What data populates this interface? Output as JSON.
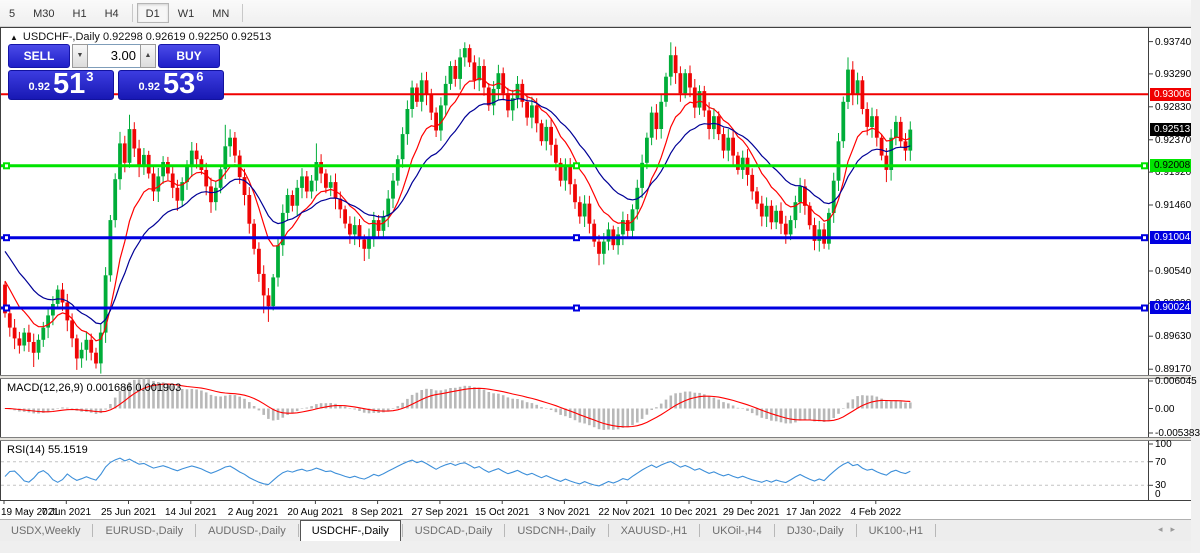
{
  "toolbar": {
    "items": [
      {
        "label": "5",
        "active": false
      },
      {
        "label": "M30",
        "active": false
      },
      {
        "label": "H1",
        "active": false
      },
      {
        "label": "H4",
        "active": false,
        "sep_after": true
      },
      {
        "label": "D1",
        "active": true
      },
      {
        "label": "W1",
        "active": false
      },
      {
        "label": "MN",
        "active": false,
        "sep_after": true
      }
    ]
  },
  "header": {
    "collapse_icon": "▲",
    "title_line": "USDCHF-,Daily  0.92298 0.92619 0.92250 0.92513"
  },
  "trade_panel": {
    "sell_label": "SELL",
    "buy_label": "BUY",
    "volume": "3.00",
    "spinner_down_icon": "▼",
    "spinner_up_icon": "▲",
    "sell_price_small": "0.92",
    "sell_price_big": "51",
    "sell_price_sup": "3",
    "buy_price_small": "0.92",
    "buy_price_big": "53",
    "buy_price_sup": "6"
  },
  "price_axis": {
    "labels": [
      {
        "text": "0.93740",
        "price": 0.9374
      },
      {
        "text": "0.93290",
        "price": 0.9329
      },
      {
        "text": "0.92830",
        "price": 0.9283
      },
      {
        "text": "0.92370",
        "price": 0.9237
      },
      {
        "text": "0.91920",
        "price": 0.9192
      },
      {
        "text": "0.91460",
        "price": 0.9146
      },
      {
        "text": "0.90540",
        "price": 0.9054
      },
      {
        "text": "0.90090",
        "price": 0.9009
      },
      {
        "text": "0.89630",
        "price": 0.8963
      },
      {
        "text": "0.89170",
        "price": 0.8917
      }
    ],
    "badges": [
      {
        "text": "0.93006",
        "price": 0.93006,
        "bg": "#f00000",
        "fg": "#ffffff",
        "name": "resistance-line-price"
      },
      {
        "text": "0.92513",
        "price": 0.92513,
        "bg": "#000000",
        "fg": "#ffffff",
        "name": "current-price"
      },
      {
        "text": "0.92008",
        "price": 0.92008,
        "bg": "#00e400",
        "fg": "#000000",
        "name": "support-line-price"
      },
      {
        "text": "0.91004",
        "price": 0.91004,
        "bg": "#0000e0",
        "fg": "#ffffff",
        "name": "support-line-price"
      },
      {
        "text": "0.90024",
        "price": 0.90024,
        "bg": "#0000e0",
        "fg": "#ffffff",
        "name": "support-line-price"
      }
    ]
  },
  "chart_data": {
    "type": "candlestick",
    "symbol": "USDCHF-",
    "timeframe": "Daily",
    "ohlc_display": {
      "open": "0.92298",
      "high": "0.92619",
      "low": "0.92250",
      "close": "0.92513"
    },
    "y_axis": {
      "min": 0.89075,
      "max": 0.9393
    },
    "x_axis": {
      "tick_dates": [
        "19 May 2021",
        "7 Jun 2021",
        "25 Jun 2021",
        "14 Jul 2021",
        "2 Aug 2021",
        "20 Aug 2021",
        "8 Sep 2021",
        "27 Sep 2021",
        "15 Oct 2021",
        "3 Nov 2021",
        "22 Nov 2021",
        "10 Dec 2021",
        "29 Dec 2021",
        "17 Jan 2022",
        "4 Feb 2022"
      ],
      "candles_per_tick": 13
    },
    "first_open": 0.9035,
    "closes": [
      0.8995,
      0.8975,
      0.896,
      0.895,
      0.8968,
      0.8955,
      0.894,
      0.8958,
      0.8975,
      0.8992,
      0.9008,
      0.9028,
      0.901,
      0.8985,
      0.896,
      0.8932,
      0.8944,
      0.8958,
      0.894,
      0.8925,
      0.8968,
      0.9048,
      0.9125,
      0.9182,
      0.9232,
      0.9205,
      0.9252,
      0.9225,
      0.92,
      0.9216,
      0.919,
      0.9165,
      0.9186,
      0.9206,
      0.919,
      0.917,
      0.9152,
      0.9178,
      0.92,
      0.9222,
      0.921,
      0.9195,
      0.9172,
      0.915,
      0.917,
      0.9196,
      0.9228,
      0.924,
      0.9215,
      0.9185,
      0.916,
      0.912,
      0.9085,
      0.905,
      0.902,
      0.9005,
      0.9045,
      0.909,
      0.9135,
      0.916,
      0.9145,
      0.917,
      0.9186,
      0.9165,
      0.918,
      0.9206,
      0.919,
      0.917,
      0.9178,
      0.9155,
      0.914,
      0.912,
      0.9105,
      0.9118,
      0.9098,
      0.9085,
      0.9102,
      0.9125,
      0.911,
      0.913,
      0.9155,
      0.918,
      0.921,
      0.9245,
      0.928,
      0.931,
      0.929,
      0.932,
      0.93,
      0.9275,
      0.925,
      0.9285,
      0.9315,
      0.934,
      0.9322,
      0.9352,
      0.9365,
      0.9345,
      0.932,
      0.934,
      0.931,
      0.9285,
      0.9308,
      0.933,
      0.9302,
      0.9278,
      0.9295,
      0.9315,
      0.929,
      0.9268,
      0.9285,
      0.926,
      0.9235,
      0.9255,
      0.923,
      0.9205,
      0.918,
      0.92,
      0.9175,
      0.915,
      0.913,
      0.9148,
      0.912,
      0.9095,
      0.9078,
      0.9095,
      0.9112,
      0.909,
      0.9105,
      0.9125,
      0.911,
      0.914,
      0.917,
      0.9205,
      0.924,
      0.9275,
      0.9252,
      0.929,
      0.9325,
      0.9355,
      0.933,
      0.9302,
      0.933,
      0.931,
      0.9282,
      0.9305,
      0.9278,
      0.9252,
      0.927,
      0.9245,
      0.9222,
      0.924,
      0.9215,
      0.9195,
      0.9212,
      0.9188,
      0.9165,
      0.9148,
      0.913,
      0.9145,
      0.9122,
      0.9138,
      0.912,
      0.9105,
      0.9125,
      0.915,
      0.9172,
      0.9145,
      0.9118,
      0.9096,
      0.9112,
      0.9092,
      0.9135,
      0.918,
      0.9235,
      0.929,
      0.9335,
      0.93,
      0.932,
      0.928,
      0.9255,
      0.927,
      0.924,
      0.9215,
      0.9195,
      0.924,
      0.9262,
      0.9235,
      0.9222,
      0.92513
    ],
    "spikes": [
      {
        "i": 6,
        "low": 0.892
      },
      {
        "i": 15,
        "low": 0.8916
      },
      {
        "i": 19,
        "low": 0.8918
      },
      {
        "i": 24,
        "high": 0.9248
      },
      {
        "i": 26,
        "high": 0.9272
      },
      {
        "i": 46,
        "high": 0.9258
      },
      {
        "i": 54,
        "low": 0.8995
      },
      {
        "i": 55,
        "low": 0.8983
      },
      {
        "i": 65,
        "high": 0.9232
      },
      {
        "i": 75,
        "low": 0.9068
      },
      {
        "i": 96,
        "high": 0.9373
      },
      {
        "i": 124,
        "low": 0.9062
      },
      {
        "i": 139,
        "high": 0.9373
      },
      {
        "i": 163,
        "low": 0.9092
      },
      {
        "i": 169,
        "low": 0.9083
      },
      {
        "i": 171,
        "low": 0.9085
      },
      {
        "i": 176,
        "high": 0.9352
      },
      {
        "i": 184,
        "low": 0.9178
      }
    ],
    "horizontal_lines": [
      {
        "price": 0.93006,
        "color": "#f00000",
        "width": 2,
        "handles": false
      },
      {
        "price": 0.92008,
        "color": "#00e400",
        "width": 3,
        "handles": true
      },
      {
        "price": 0.91004,
        "color": "#0000e0",
        "width": 3,
        "handles": true
      },
      {
        "price": 0.90024,
        "color": "#0000e0",
        "width": 3,
        "handles": true
      }
    ],
    "moving_averages": [
      {
        "period": 10,
        "color": "#ff0000",
        "seed": 0.905
      },
      {
        "period": 21,
        "color": "#000096",
        "seed": 0.909
      }
    ],
    "indicators": {
      "macd": {
        "label": "MACD(12,26,9) 0.001686 0.001903",
        "params": [
          12,
          26,
          9
        ],
        "values": {
          "main": "0.001686",
          "signal": "0.001903"
        },
        "axis_labels": [
          {
            "text": "0.006045",
            "value": 0.006045
          },
          {
            "text": "0.00",
            "value": 0
          },
          {
            "text": "-0.005383",
            "value": -0.005383
          }
        ]
      },
      "rsi": {
        "label": "RSI(14) 55.1519",
        "period": 14,
        "value": 55.1519,
        "levels": [
          70,
          30
        ],
        "axis_labels": [
          {
            "text": "100",
            "value": 100
          },
          {
            "text": "70",
            "value": 70
          },
          {
            "text": "30",
            "value": 30
          },
          {
            "text": "0",
            "value": 0
          }
        ]
      }
    }
  },
  "colors": {
    "bull": "#00ad39",
    "bear": "#ef0505",
    "macd_hist": "#b8b8b8",
    "macd_signal": "#ff0000",
    "rsi_line": "#3d8fd9",
    "rsi_level": "#c4c4c4",
    "axis_tick": "#404040"
  },
  "tabs": {
    "items": [
      {
        "label": "USDX,Weekly",
        "active": false
      },
      {
        "label": "EURUSD-,Daily",
        "active": false
      },
      {
        "label": "AUDUSD-,Daily",
        "active": false
      },
      {
        "label": "USDCHF-,Daily",
        "active": true
      },
      {
        "label": "USDCAD-,Daily",
        "active": false
      },
      {
        "label": "USDCNH-,Daily",
        "active": false
      },
      {
        "label": "XAUUSD-,H1",
        "active": false
      },
      {
        "label": "UKOil-,H4",
        "active": false
      },
      {
        "label": "DJ30-,Daily",
        "active": false
      },
      {
        "label": "UK100-,H1",
        "active": false
      }
    ],
    "scroll_left_icon": "◂",
    "scroll_right_icon": "▸"
  }
}
